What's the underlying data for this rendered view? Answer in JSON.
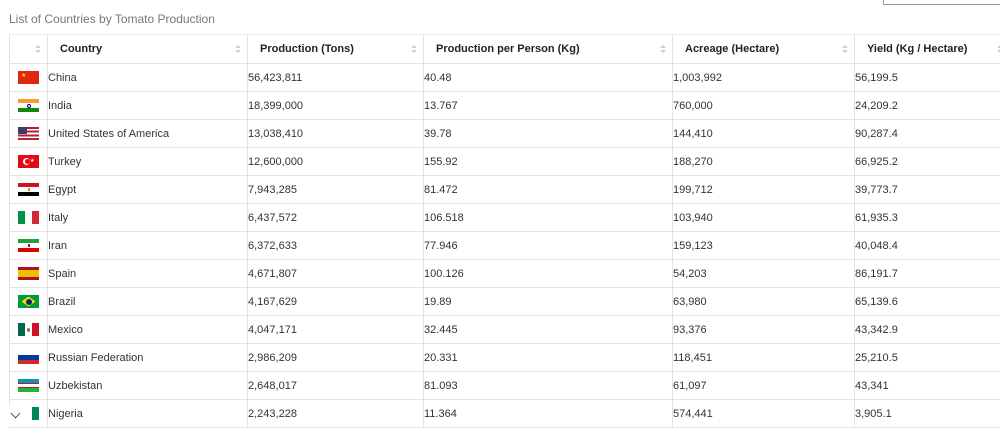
{
  "caption": "List of Countries by Tomato Production",
  "columns": [
    "",
    "Country",
    "Production (Tons)",
    "Production per Person (Kg)",
    "Acreage (Hectare)",
    "Yield (Kg / Hectare)"
  ],
  "rows": [
    {
      "flag": "china-flag-icon",
      "country": "China",
      "production": "56,423,811",
      "per_person": "40.48",
      "acreage": "1,003,992",
      "yield": "56,199.5"
    },
    {
      "flag": "india-flag-icon",
      "country": "India",
      "production": "18,399,000",
      "per_person": "13.767",
      "acreage": "760,000",
      "yield": "24,209.2"
    },
    {
      "flag": "usa-flag-icon",
      "country": "United States of America",
      "production": "13,038,410",
      "per_person": "39.78",
      "acreage": "144,410",
      "yield": "90,287.4"
    },
    {
      "flag": "turkey-flag-icon",
      "country": "Turkey",
      "production": "12,600,000",
      "per_person": "155.92",
      "acreage": "188,270",
      "yield": "66,925.2"
    },
    {
      "flag": "egypt-flag-icon",
      "country": "Egypt",
      "production": "7,943,285",
      "per_person": "81.472",
      "acreage": "199,712",
      "yield": "39,773.7"
    },
    {
      "flag": "italy-flag-icon",
      "country": "Italy",
      "production": "6,437,572",
      "per_person": "106.518",
      "acreage": "103,940",
      "yield": "61,935.3"
    },
    {
      "flag": "iran-flag-icon",
      "country": "Iran",
      "production": "6,372,633",
      "per_person": "77.946",
      "acreage": "159,123",
      "yield": "40,048.4"
    },
    {
      "flag": "spain-flag-icon",
      "country": "Spain",
      "production": "4,671,807",
      "per_person": "100.126",
      "acreage": "54,203",
      "yield": "86,191.7"
    },
    {
      "flag": "brazil-flag-icon",
      "country": "Brazil",
      "production": "4,167,629",
      "per_person": "19.89",
      "acreage": "63,980",
      "yield": "65,139.6"
    },
    {
      "flag": "mexico-flag-icon",
      "country": "Mexico",
      "production": "4,047,171",
      "per_person": "32.445",
      "acreage": "93,376",
      "yield": "43,342.9"
    },
    {
      "flag": "russia-flag-icon",
      "country": "Russian Federation",
      "production": "2,986,209",
      "per_person": "20.331",
      "acreage": "118,451",
      "yield": "25,210.5"
    },
    {
      "flag": "uzbekistan-flag-icon",
      "country": "Uzbekistan",
      "production": "2,648,017",
      "per_person": "81.093",
      "acreage": "61,097",
      "yield": "43,341"
    },
    {
      "flag": "nigeria-flag-icon",
      "country": "Nigeria",
      "production": "2,243,228",
      "per_person": "11.364",
      "acreage": "574,441",
      "yield": "3,905.1"
    }
  ],
  "icons": {
    "sort": "sort-icon",
    "expand": "chevron-down-icon"
  }
}
